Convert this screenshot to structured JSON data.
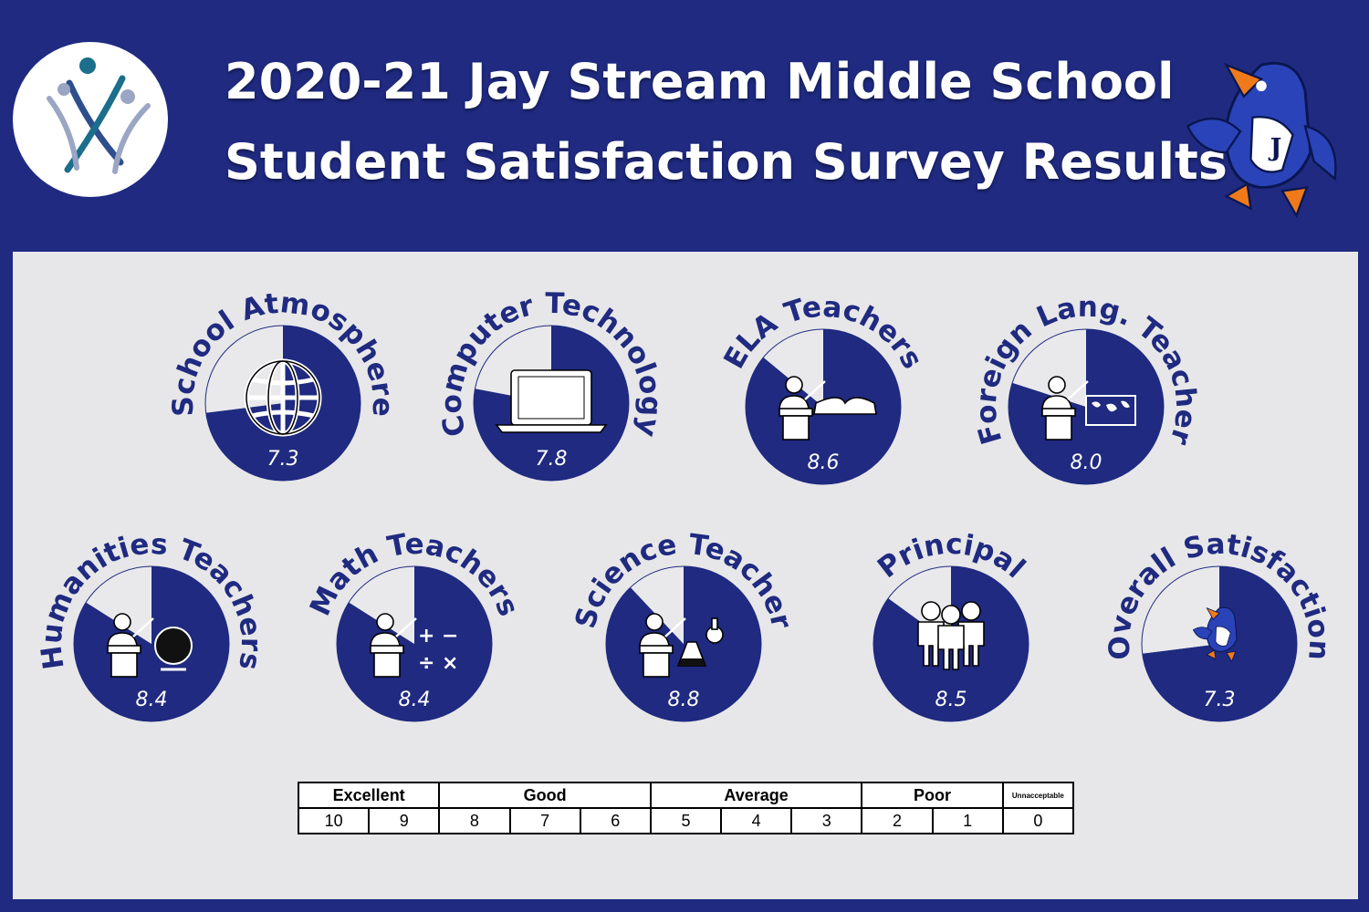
{
  "header": {
    "title_line1": "2020-21 Jay Stream Middle School",
    "title_line2": "Student Satisfaction Survey Results",
    "logo_icon": "school-district-people-logo",
    "mascot_icon": "blue-jay-mascot"
  },
  "colors": {
    "navy": "#1f2a80",
    "panel": "#e7e7e9",
    "gauge_remainder": "#e9e9ec",
    "white": "#ffffff"
  },
  "chart_data": {
    "type": "pie",
    "scale_max": 10,
    "gauges": [
      {
        "label": "School Atmosphere",
        "score": 7.3,
        "icon": "globe-icon"
      },
      {
        "label": "Computer Technology",
        "score": 7.8,
        "icon": "laptop-icon"
      },
      {
        "label": "ELA Teachers",
        "score": 8.6,
        "icon": "teacher-book-icon"
      },
      {
        "label": "Foreign Lang. Teacher",
        "score": 8.0,
        "icon": "teacher-map-icon"
      },
      {
        "label": "Humanities Teachers",
        "score": 8.4,
        "icon": "teacher-globe-icon"
      },
      {
        "label": "Math Teachers",
        "score": 8.4,
        "icon": "teacher-math-icon"
      },
      {
        "label": "Science Teacher",
        "score": 8.8,
        "icon": "teacher-science-icon"
      },
      {
        "label": "Principal",
        "score": 8.5,
        "icon": "people-group-icon"
      },
      {
        "label": "Overall Satisfaction",
        "score": 7.3,
        "icon": "blue-jay-mascot-icon"
      }
    ]
  },
  "scale_table": {
    "categories": [
      {
        "label": "Excellent",
        "values": [
          "10",
          "9"
        ]
      },
      {
        "label": "Good",
        "values": [
          "8",
          "7",
          "6"
        ]
      },
      {
        "label": "Average",
        "values": [
          "5",
          "4",
          "3"
        ]
      },
      {
        "label": "Poor",
        "values": [
          "2",
          "1"
        ]
      },
      {
        "label": "Unnacceptable",
        "values": [
          "0"
        ]
      }
    ]
  }
}
